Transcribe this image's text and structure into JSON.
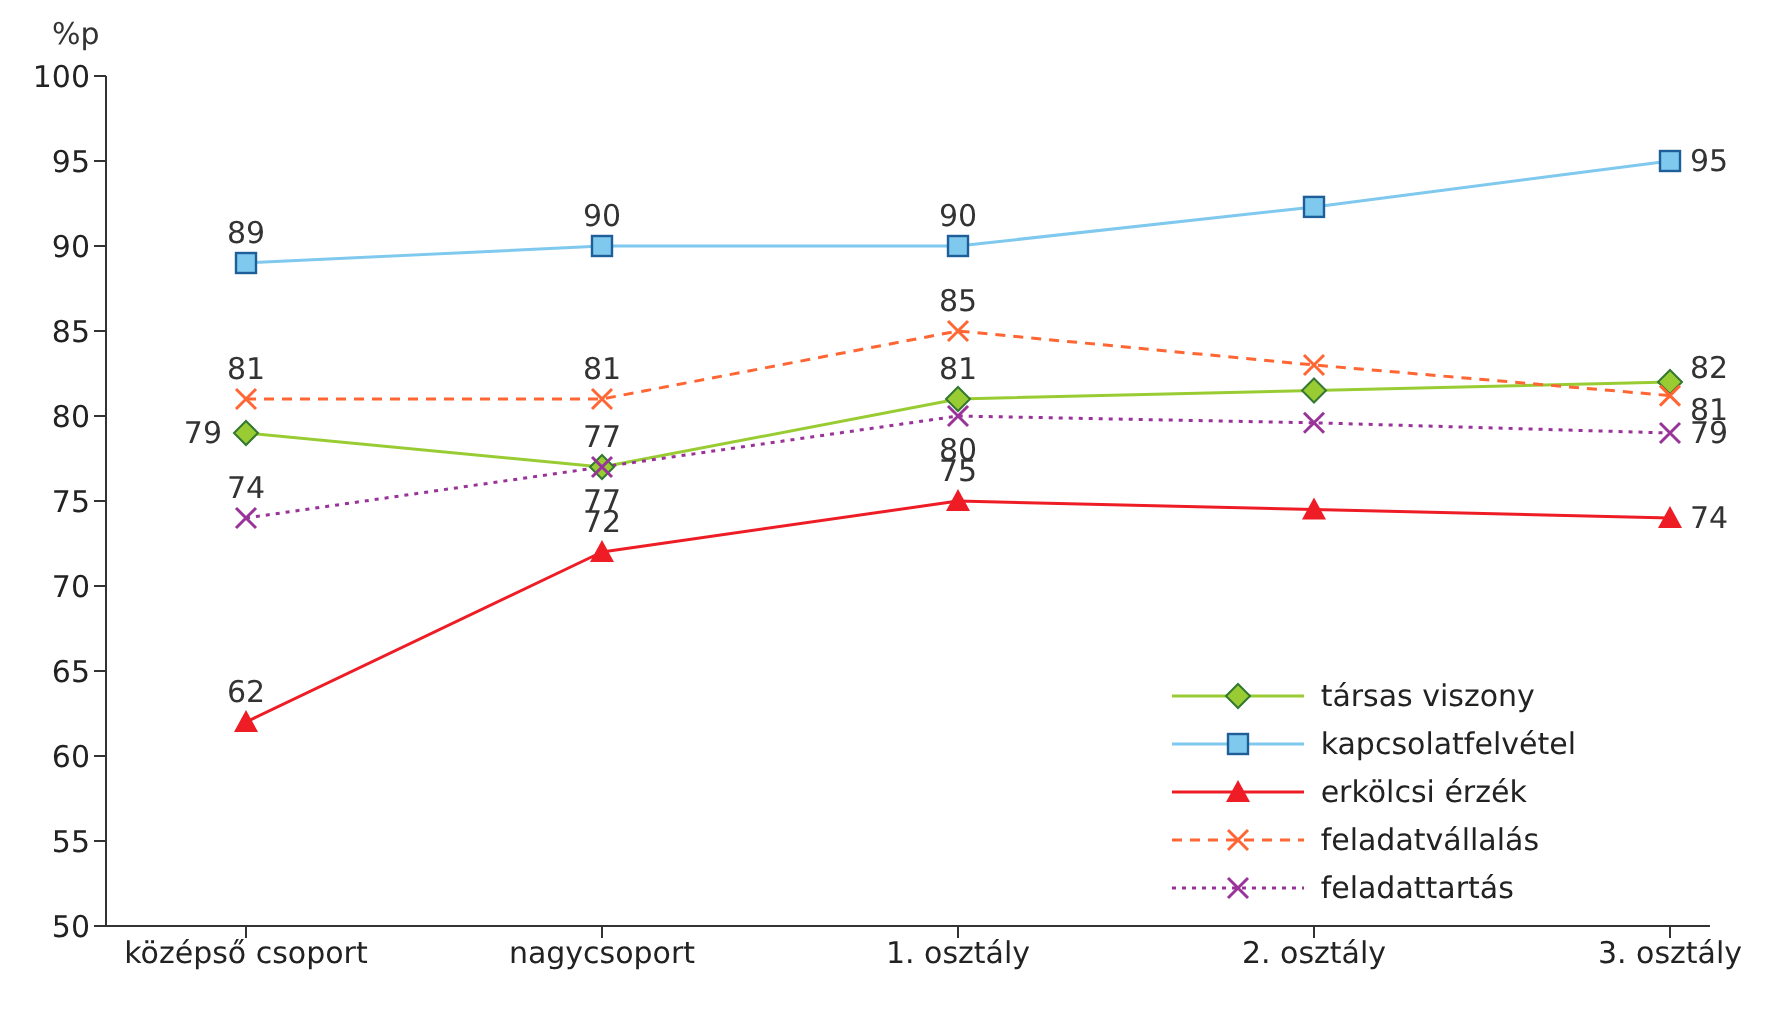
{
  "chart_data": {
    "type": "line",
    "ylabel": "%p",
    "categories": [
      "középső csoport",
      "nagycsoport",
      "1. osztály",
      "2. osztály",
      "3. osztály"
    ],
    "ylim": [
      50,
      100
    ],
    "yticks": [
      50,
      55,
      60,
      65,
      70,
      75,
      80,
      85,
      90,
      95,
      100
    ],
    "grid": false,
    "legend": "bottom right",
    "series": [
      {
        "name": "társas viszony",
        "color": "#99cc33",
        "marker": "diamond",
        "line_style": "solid",
        "values": [
          79,
          77,
          81,
          81.5,
          82
        ],
        "value_labels": [
          "79",
          "77",
          "81",
          null,
          "82"
        ]
      },
      {
        "name": "kapcsolatfelvétel",
        "color": "#7fc8ee",
        "marker": "square",
        "line_style": "solid",
        "values": [
          89,
          90,
          90,
          92.3,
          95
        ],
        "value_labels": [
          "89",
          "90",
          "90",
          null,
          "95"
        ]
      },
      {
        "name": "erkölcsi érzék",
        "color": "#ee1c25",
        "marker": "triangle",
        "line_style": "solid",
        "values": [
          62,
          72,
          75,
          74.5,
          74
        ],
        "value_labels": [
          "62",
          "72",
          "75",
          null,
          "74"
        ]
      },
      {
        "name": "feladatvállalás",
        "color": "#ff6633",
        "marker": "cross",
        "line_style": "dashed",
        "values": [
          81,
          81,
          85,
          83,
          81.2
        ],
        "value_labels": [
          "81",
          "81",
          "85",
          null,
          "81"
        ]
      },
      {
        "name": "feladattartás",
        "color": "#993399",
        "marker": "cross",
        "line_style": "dotted",
        "values": [
          74,
          77,
          80,
          79.6,
          79
        ],
        "value_labels": [
          "74",
          "77",
          "80",
          null,
          "79"
        ]
      }
    ]
  }
}
